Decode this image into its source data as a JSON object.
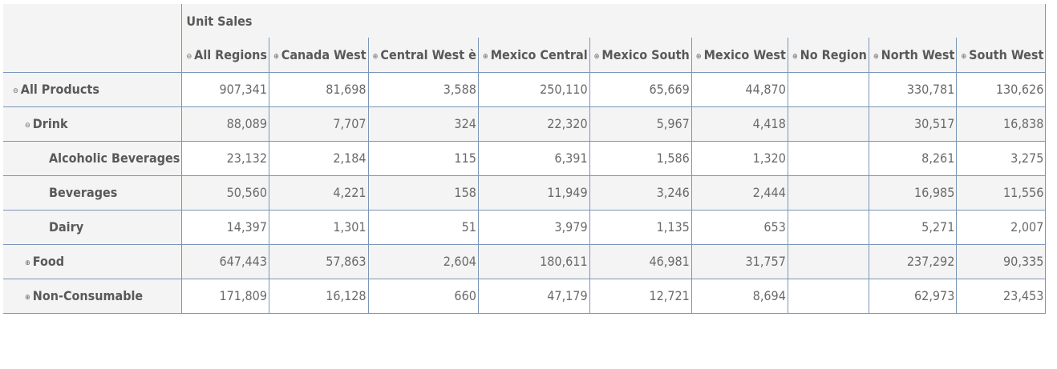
{
  "measure_label": "Unit Sales",
  "columns": [
    {
      "label": "All Regions",
      "toggle": "⊖"
    },
    {
      "label": "Canada West",
      "toggle": "⊕"
    },
    {
      "label": "Central West è",
      "toggle": "⊕"
    },
    {
      "label": "Mexico Central",
      "toggle": "⊕"
    },
    {
      "label": "Mexico South",
      "toggle": "⊕"
    },
    {
      "label": "Mexico West",
      "toggle": "⊕"
    },
    {
      "label": "No Region",
      "toggle": "⊕"
    },
    {
      "label": "North West",
      "toggle": "⊕"
    },
    {
      "label": "South West",
      "toggle": "⊕"
    }
  ],
  "rows": [
    {
      "label": "All Products",
      "toggle": "⊖",
      "level": 0,
      "values": [
        "907,341",
        "81,698",
        "3,588",
        "250,110",
        "65,669",
        "44,870",
        "",
        "330,781",
        "130,626"
      ]
    },
    {
      "label": "Drink",
      "toggle": "⊖",
      "level": 1,
      "values": [
        "88,089",
        "7,707",
        "324",
        "22,320",
        "5,967",
        "4,418",
        "",
        "30,517",
        "16,838"
      ]
    },
    {
      "label": "Alcoholic Beverages",
      "toggle": "",
      "level": 2,
      "values": [
        "23,132",
        "2,184",
        "115",
        "6,391",
        "1,586",
        "1,320",
        "",
        "8,261",
        "3,275"
      ]
    },
    {
      "label": "Beverages",
      "toggle": "",
      "level": 2,
      "values": [
        "50,560",
        "4,221",
        "158",
        "11,949",
        "3,246",
        "2,444",
        "",
        "16,985",
        "11,556"
      ]
    },
    {
      "label": "Dairy",
      "toggle": "",
      "level": 2,
      "values": [
        "14,397",
        "1,301",
        "51",
        "3,979",
        "1,135",
        "653",
        "",
        "5,271",
        "2,007"
      ]
    },
    {
      "label": "Food",
      "toggle": "⊕",
      "level": 1,
      "values": [
        "647,443",
        "57,863",
        "2,604",
        "180,611",
        "46,981",
        "31,757",
        "",
        "237,292",
        "90,335"
      ]
    },
    {
      "label": "Non-Consumable",
      "toggle": "⊕",
      "level": 1,
      "values": [
        "171,809",
        "16,128",
        "660",
        "47,179",
        "12,721",
        "8,694",
        "",
        "62,973",
        "23,453"
      ]
    }
  ]
}
